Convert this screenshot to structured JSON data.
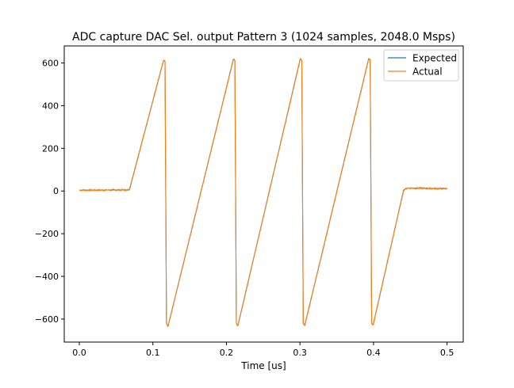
{
  "chart_data": {
    "type": "line",
    "title": "ADC capture DAC Sel. output Pattern 3 (1024 samples, 2048.0 Msps)",
    "xlabel": "Time [us]",
    "ylabel": "",
    "xlim": [
      -0.0205,
      0.522
    ],
    "ylim": [
      -708,
      680
    ],
    "xticks": [
      0.0,
      0.1,
      0.2,
      0.3,
      0.4,
      0.5
    ],
    "xtick_labels": [
      "0.0",
      "0.1",
      "0.2",
      "0.3",
      "0.4",
      "0.5"
    ],
    "yticks": [
      -600,
      -400,
      -200,
      0,
      200,
      400,
      600
    ],
    "ytick_labels": [
      "−600",
      "−400",
      "−200",
      "0",
      "200",
      "400",
      "600"
    ],
    "grid": false,
    "legend_position": "top-right",
    "series": [
      {
        "name": "Expected",
        "color": "#1f77b4",
        "x": [
          0.0,
          0.068,
          0.1145,
          0.1165,
          0.1185,
          0.1205,
          0.2095,
          0.2115,
          0.2135,
          0.2155,
          0.3005,
          0.3025,
          0.3045,
          0.3065,
          0.3935,
          0.3955,
          0.3975,
          0.3995,
          0.441,
          0.446,
          0.5
        ],
        "y": [
          4,
          5,
          612,
          608,
          -620,
          -635,
          618,
          612,
          -620,
          -632,
          620,
          612,
          -620,
          -630,
          621,
          615,
          -622,
          -628,
          5,
          14,
          11
        ]
      },
      {
        "name": "Actual",
        "color": "#ff7f0e",
        "x": [
          0.0,
          0.068,
          0.1145,
          0.1165,
          0.1185,
          0.1205,
          0.2095,
          0.2115,
          0.2135,
          0.2155,
          0.3005,
          0.3025,
          0.3045,
          0.3065,
          0.3935,
          0.3955,
          0.3975,
          0.3995,
          0.441,
          0.446,
          0.5
        ],
        "y": [
          4,
          5,
          612,
          608,
          -620,
          -635,
          618,
          612,
          -620,
          -632,
          620,
          612,
          -620,
          -630,
          621,
          615,
          -622,
          -628,
          5,
          14,
          11
        ]
      }
    ]
  }
}
